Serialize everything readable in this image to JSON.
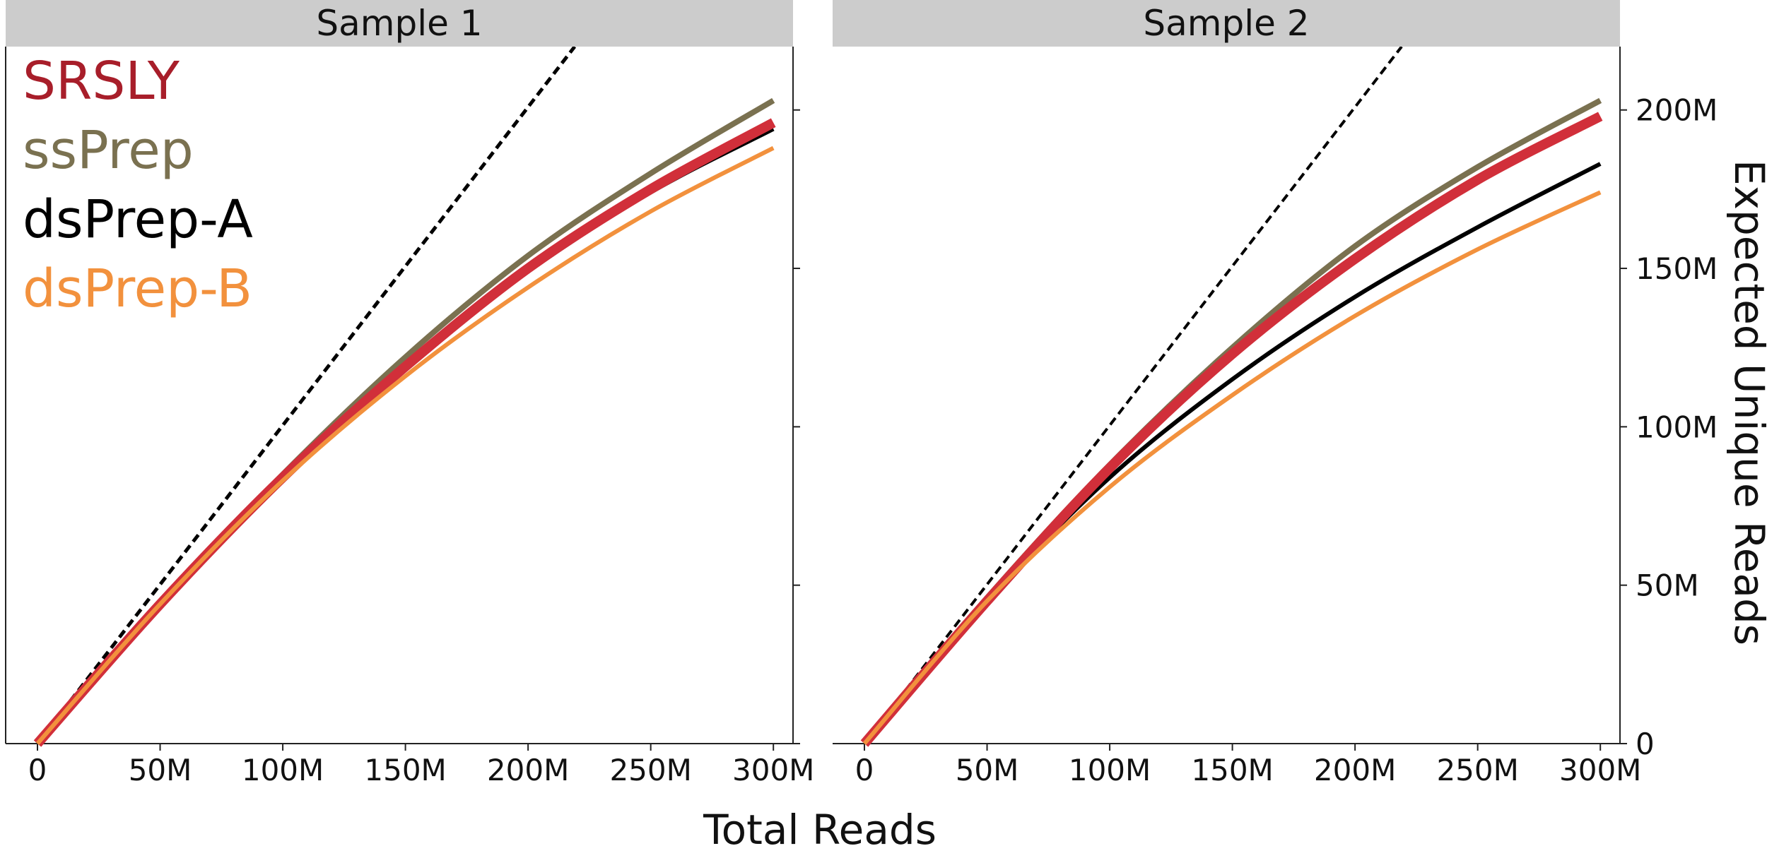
{
  "chart_data": {
    "type": "line",
    "xlabel": "Total Reads",
    "ylabel": "Expected Unique Reads",
    "xlim": [
      0,
      300000000
    ],
    "ylim": [
      0,
      220000000
    ],
    "x_ticks": [
      0,
      50000000,
      100000000,
      150000000,
      200000000,
      250000000,
      300000000
    ],
    "x_tick_labels": [
      "0",
      "50M",
      "100M",
      "150M",
      "200M",
      "250M",
      "300M"
    ],
    "y_ticks": [
      0,
      50000000,
      100000000,
      150000000,
      200000000
    ],
    "y_tick_labels": [
      "0",
      "50M",
      "100M",
      "150M",
      "200M"
    ],
    "grid": false,
    "legend_position": "top-left",
    "legend": [
      {
        "name": "SRSLY",
        "color": "#a81e2a"
      },
      {
        "name": "ssPrep",
        "color": "#7a7150"
      },
      {
        "name": "dsPrep-A",
        "color": "#000000"
      },
      {
        "name": "dsPrep-B",
        "color": "#f2913d"
      }
    ],
    "panels": [
      {
        "title": "Sample 1",
        "x": [
          0,
          50000000,
          100000000,
          150000000,
          200000000,
          250000000,
          300000000
        ],
        "reference_line": {
          "style": "dashed",
          "color": "#000000",
          "x": [
            0,
            219000000
          ],
          "y": [
            0,
            220000000
          ]
        },
        "series": [
          {
            "name": "ssPrep",
            "color": "#7a7150",
            "width": 8,
            "values": [
              0,
              44000000,
              85000000,
              122000000,
              154000000,
              180000000,
              203000000
            ]
          },
          {
            "name": "dsPrep-A",
            "color": "#000000",
            "width": 6,
            "values": [
              0,
              44000000,
              84000000,
              119000000,
              149000000,
              174000000,
              194000000
            ]
          },
          {
            "name": "SRSLY",
            "color": "#d12f3a",
            "width": 14,
            "values": [
              0,
              44000000,
              84000000,
              119000000,
              150000000,
              175000000,
              196000000
            ]
          },
          {
            "name": "dsPrep-B",
            "color": "#f2913d",
            "width": 6,
            "values": [
              0,
              44000000,
              83000000,
              116000000,
              144000000,
              168000000,
              188000000
            ]
          }
        ]
      },
      {
        "title": "Sample 2",
        "x": [
          0,
          50000000,
          100000000,
          150000000,
          200000000,
          250000000,
          300000000
        ],
        "reference_line": {
          "style": "dashed",
          "color": "#000000",
          "x": [
            0,
            219000000
          ],
          "y": [
            0,
            220000000
          ]
        },
        "series": [
          {
            "name": "ssPrep",
            "color": "#7a7150",
            "width": 8,
            "values": [
              0,
              46000000,
              88000000,
              125000000,
              157000000,
              182000000,
              203000000
            ]
          },
          {
            "name": "dsPrep-A",
            "color": "#000000",
            "width": 6,
            "values": [
              0,
              45000000,
              84000000,
              115000000,
              141000000,
              163000000,
              183000000
            ]
          },
          {
            "name": "SRSLY",
            "color": "#d12f3a",
            "width": 14,
            "values": [
              0,
              45000000,
              87000000,
              123000000,
              153000000,
              178000000,
              198000000
            ]
          },
          {
            "name": "dsPrep-B",
            "color": "#f2913d",
            "width": 6,
            "values": [
              0,
              45000000,
              81000000,
              110000000,
              135000000,
              156000000,
              174000000
            ]
          }
        ]
      }
    ]
  }
}
